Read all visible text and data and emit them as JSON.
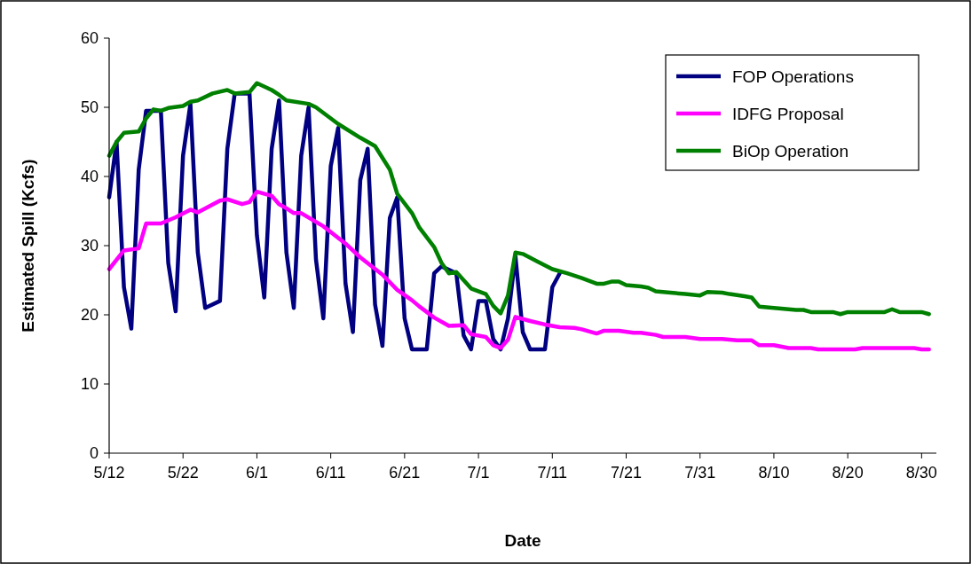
{
  "chart_data": {
    "type": "line",
    "xlabel": "Date",
    "ylabel": "Estimated Spill (Kcfs)",
    "xlim": [
      "--05-12",
      "--09-01"
    ],
    "xticks": [
      {
        "value": "--05-12",
        "label": "5/12"
      },
      {
        "value": "--05-22",
        "label": "5/22"
      },
      {
        "value": "--06-01",
        "label": "6/1"
      },
      {
        "value": "--06-11",
        "label": "6/11"
      },
      {
        "value": "--06-21",
        "label": "6/21"
      },
      {
        "value": "--07-01",
        "label": "7/1"
      },
      {
        "value": "--07-11",
        "label": "7/11"
      },
      {
        "value": "--07-21",
        "label": "7/21"
      },
      {
        "value": "--07-31",
        "label": "7/31"
      },
      {
        "value": "--08-10",
        "label": "8/10"
      },
      {
        "value": "--08-20",
        "label": "8/20"
      },
      {
        "value": "--08-30",
        "label": "8/30"
      }
    ],
    "ylim": [
      0,
      60
    ],
    "yticks": [
      0,
      10,
      20,
      30,
      40,
      50,
      60
    ],
    "grid": false,
    "legend": "top right",
    "marker": "none",
    "line_style": "solid",
    "series": [
      {
        "name": "FOP Operations",
        "color": "#000080",
        "x": [
          "--05-12",
          "--05-13",
          "--05-14",
          "--05-15",
          "--05-16",
          "--05-17",
          "--05-19",
          "--05-20",
          "--05-21",
          "--05-22",
          "--05-23",
          "--05-24",
          "--05-25",
          "--05-27",
          "--05-28",
          "--05-29",
          "--05-31",
          "--06-01",
          "--06-02",
          "--06-03",
          "--06-04",
          "--06-05",
          "--06-06",
          "--06-07",
          "--06-08",
          "--06-09",
          "--06-10",
          "--06-11",
          "--06-12",
          "--06-13",
          "--06-14",
          "--06-15",
          "--06-16",
          "--06-17",
          "--06-18",
          "--06-19",
          "--06-20",
          "--06-21",
          "--06-22",
          "--06-24",
          "--06-25",
          "--06-26",
          "--06-28",
          "--06-29",
          "--06-30",
          "--07-01",
          "--07-02",
          "--07-03",
          "--07-04",
          "--07-05",
          "--07-06",
          "--07-07",
          "--07-08",
          "--07-10",
          "--07-11",
          "--07-12"
        ],
        "values": [
          37,
          45,
          24,
          18,
          41,
          49.5,
          49.5,
          27.5,
          20.5,
          43,
          50.5,
          29,
          21,
          22,
          44,
          52,
          52,
          31.5,
          22.5,
          44,
          51,
          29,
          21,
          43,
          50,
          28,
          19.5,
          41.5,
          47,
          24.5,
          17.5,
          39.5,
          44,
          21.5,
          15.5,
          34,
          37,
          19.5,
          15,
          15,
          26,
          27,
          26,
          17,
          15,
          22,
          22,
          16.5,
          15,
          19.5,
          28.5,
          17.5,
          15,
          15,
          24,
          26
        ]
      },
      {
        "name": "IDFG Proposal",
        "color": "#ff00ff",
        "x": [
          "--05-12",
          "--05-14",
          "--05-16",
          "--05-17",
          "--05-19",
          "--05-21",
          "--05-23",
          "--05-24",
          "--05-27",
          "--05-28",
          "--05-30",
          "--05-31",
          "--06-01",
          "--06-03",
          "--06-04",
          "--06-05",
          "--06-06",
          "--06-07",
          "--06-10",
          "--06-13",
          "--06-15",
          "--06-18",
          "--06-20",
          "--06-22",
          "--06-23",
          "--06-25",
          "--06-27",
          "--06-29",
          "--06-30",
          "--07-02",
          "--07-03",
          "--07-04",
          "--07-05",
          "--07-06",
          "--07-08",
          "--07-10",
          "--07-12",
          "--07-14",
          "--07-15",
          "--07-17",
          "--07-18",
          "--07-20",
          "--07-22",
          "--07-23",
          "--07-25",
          "--07-26",
          "--07-29",
          "--07-31",
          "--08-03",
          "--08-05",
          "--08-07",
          "--08-08",
          "--08-10",
          "--08-12",
          "--08-15",
          "--08-16",
          "--08-21",
          "--08-22",
          "--08-29",
          "--08-30",
          "--08-31"
        ],
        "values": [
          26.6,
          29.3,
          29.6,
          33.2,
          33.2,
          34.1,
          35.2,
          34.8,
          36.5,
          36.7,
          36,
          36.3,
          37.8,
          37.2,
          36,
          35.4,
          34.7,
          34.7,
          32.8,
          30.3,
          28.3,
          25.8,
          23.6,
          22.1,
          21.2,
          19.6,
          18.4,
          18.5,
          17.2,
          16.8,
          15.6,
          15.2,
          16.4,
          19.7,
          19.1,
          18.6,
          18.2,
          18.1,
          17.9,
          17.3,
          17.7,
          17.7,
          17.4,
          17.4,
          17.1,
          16.8,
          16.8,
          16.5,
          16.5,
          16.3,
          16.3,
          15.6,
          15.6,
          15.2,
          15.2,
          15,
          15,
          15.2,
          15.2,
          15,
          15
        ]
      },
      {
        "name": "BiOp Operation",
        "color": "#008000",
        "x": [
          "--05-12",
          "--05-13",
          "--05-14",
          "--05-16",
          "--05-17",
          "--05-18",
          "--05-19",
          "--05-20",
          "--05-22",
          "--05-23",
          "--05-24",
          "--05-26",
          "--05-28",
          "--05-29",
          "--05-31",
          "--06-01",
          "--06-03",
          "--06-04",
          "--06-05",
          "--06-08",
          "--06-09",
          "--06-12",
          "--06-15",
          "--06-17",
          "--06-19",
          "--06-20",
          "--06-22",
          "--06-23",
          "--06-25",
          "--06-26",
          "--06-27",
          "--06-28",
          "--06-30",
          "--07-02",
          "--07-03",
          "--07-04",
          "--07-05",
          "--07-06",
          "--07-07",
          "--07-09",
          "--07-11",
          "--07-13",
          "--07-15",
          "--07-17",
          "--07-18",
          "--07-19",
          "--07-20",
          "--07-21",
          "--07-23",
          "--07-24",
          "--07-25",
          "--07-27",
          "--07-29",
          "--07-31",
          "--08-01",
          "--08-03",
          "--08-04",
          "--08-06",
          "--08-07",
          "--08-08",
          "--08-10",
          "--08-12",
          "--08-13",
          "--08-14",
          "--08-15",
          "--08-18",
          "--08-19",
          "--08-20",
          "--08-25",
          "--08-26",
          "--08-27",
          "--08-30",
          "--08-31"
        ],
        "values": [
          43,
          45,
          46.3,
          46.5,
          48.4,
          49.7,
          49.5,
          49.9,
          50.2,
          50.8,
          51,
          52,
          52.5,
          52,
          52.2,
          53.5,
          52.5,
          51.8,
          51,
          50.5,
          50,
          47.6,
          45.6,
          44.4,
          41,
          37.5,
          34.7,
          32.6,
          29.8,
          27.5,
          26,
          26.2,
          23.8,
          23,
          21.3,
          20.2,
          22.8,
          29,
          28.8,
          27.7,
          26.6,
          26,
          25.3,
          24.5,
          24.5,
          24.8,
          24.8,
          24.3,
          24.1,
          23.9,
          23.4,
          23.2,
          23,
          22.8,
          23.3,
          23.2,
          23,
          22.7,
          22.5,
          21.2,
          21,
          20.8,
          20.7,
          20.7,
          20.4,
          20.4,
          20.1,
          20.4,
          20.4,
          20.8,
          20.4,
          20.4,
          20.1
        ]
      }
    ]
  }
}
